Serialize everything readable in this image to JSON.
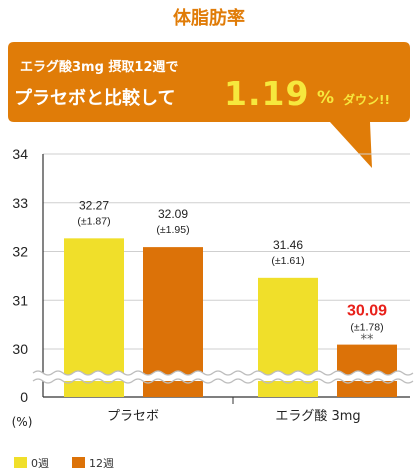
{
  "title": "体脂肪率",
  "callout": {
    "line1": "エラグ酸3mg 摂取12週で",
    "line2": "プラセボと比較して",
    "big": "1.19",
    "pct": "%",
    "down": "ダウン!!"
  },
  "colors": {
    "week0": "#f0df2a",
    "week12": "#dc7208",
    "highlight": "#e8201a",
    "callout": "#e07c08"
  },
  "chart_data": {
    "type": "bar",
    "title": "体脂肪率",
    "ylabel": "(%)",
    "ylim": [
      29,
      34
    ],
    "yticks": [
      "0",
      "30",
      "31",
      "32",
      "33",
      "34"
    ],
    "axis_break": true,
    "categories": [
      "プラセボ",
      "エラグ酸  3mg"
    ],
    "series": [
      {
        "name": "0週",
        "values": [
          32.27,
          31.46
        ],
        "labels": [
          "32.27",
          "31.46"
        ],
        "sd": [
          "(±1.87)",
          "(±1.61)"
        ]
      },
      {
        "name": "12週",
        "values": [
          32.09,
          30.09
        ],
        "labels": [
          "32.09",
          "30.09"
        ],
        "sd": [
          "(±1.95)",
          "(±1.78)"
        ]
      }
    ],
    "significance": "**"
  }
}
